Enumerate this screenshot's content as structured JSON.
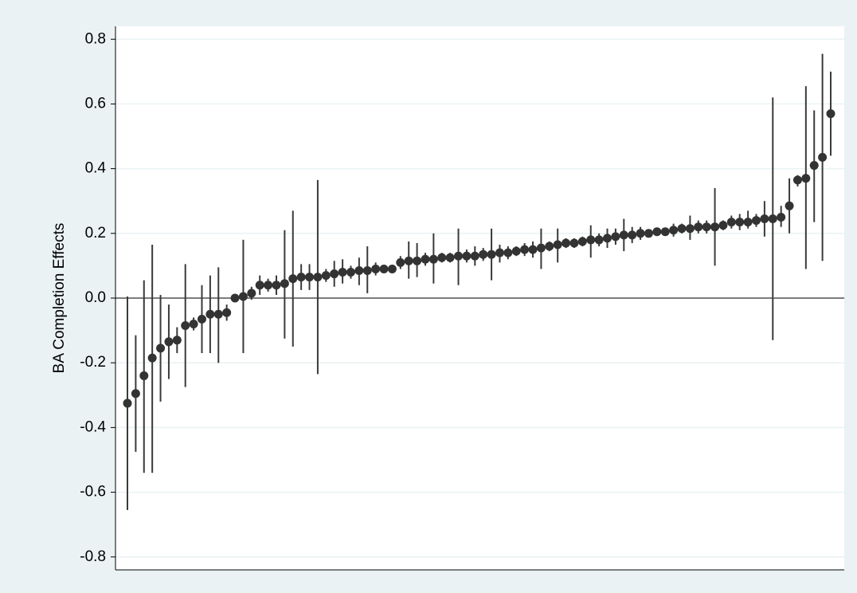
{
  "chart_data": {
    "type": "errorbar",
    "y_label": "BA Completion Effects",
    "ylim": [
      -0.84,
      0.84
    ],
    "yticks": [
      -0.8,
      -0.6,
      -0.4,
      -0.2,
      {
        "value": 0,
        "label": "0.0"
      },
      0.2,
      0.4,
      0.6,
      0.8
    ],
    "grid": true,
    "reference_line": 0,
    "color": "#333333",
    "values": [
      -0.325,
      -0.295,
      -0.24,
      -0.185,
      -0.155,
      -0.135,
      -0.13,
      -0.085,
      -0.08,
      -0.065,
      -0.05,
      -0.05,
      -0.045,
      0.0,
      0.005,
      0.015,
      0.04,
      0.04,
      0.04,
      0.045,
      0.06,
      0.065,
      0.065,
      0.065,
      0.07,
      0.075,
      0.08,
      0.08,
      0.085,
      0.085,
      0.09,
      0.09,
      0.09,
      0.11,
      0.115,
      0.115,
      0.12,
      0.12,
      0.125,
      0.125,
      0.13,
      0.13,
      0.13,
      0.135,
      0.135,
      0.14,
      0.14,
      0.145,
      0.15,
      0.15,
      0.155,
      0.16,
      0.165,
      0.17,
      0.17,
      0.175,
      0.18,
      0.18,
      0.185,
      0.19,
      0.195,
      0.195,
      0.2,
      0.2,
      0.205,
      0.205,
      0.21,
      0.215,
      0.215,
      0.22,
      0.22,
      0.22,
      0.225,
      0.235,
      0.235,
      0.235,
      0.24,
      0.245,
      0.245,
      0.25,
      0.285,
      0.365,
      0.37,
      0.41,
      0.435,
      0.57
    ],
    "lower": [
      -0.655,
      -0.475,
      -0.54,
      -0.54,
      -0.32,
      -0.25,
      -0.17,
      -0.275,
      -0.1,
      -0.17,
      -0.17,
      -0.2,
      -0.07,
      -0.01,
      -0.17,
      -0.005,
      0.01,
      0.02,
      0.01,
      -0.125,
      -0.15,
      0.025,
      0.025,
      -0.235,
      0.05,
      0.035,
      0.045,
      0.06,
      0.04,
      0.015,
      0.07,
      0.08,
      0.08,
      0.09,
      0.06,
      0.065,
      0.1,
      0.045,
      0.11,
      0.11,
      0.04,
      0.11,
      0.1,
      0.115,
      0.055,
      0.11,
      0.12,
      0.13,
      0.13,
      0.125,
      0.09,
      0.145,
      0.11,
      0.155,
      0.155,
      0.16,
      0.125,
      0.16,
      0.155,
      0.165,
      0.145,
      0.17,
      0.18,
      0.19,
      0.195,
      0.195,
      0.19,
      0.2,
      0.18,
      0.2,
      0.2,
      0.1,
      0.21,
      0.215,
      0.21,
      0.215,
      0.22,
      0.19,
      -0.13,
      0.22,
      0.2,
      0.345,
      0.09,
      0.235,
      0.115,
      0.44
    ],
    "upper": [
      0.005,
      -0.115,
      0.055,
      0.165,
      0.01,
      -0.02,
      -0.09,
      0.105,
      -0.06,
      0.04,
      0.07,
      0.095,
      -0.02,
      0.01,
      0.18,
      0.035,
      0.07,
      0.06,
      0.07,
      0.21,
      0.27,
      0.105,
      0.105,
      0.365,
      0.09,
      0.115,
      0.12,
      0.1,
      0.125,
      0.16,
      0.11,
      0.1,
      0.1,
      0.13,
      0.175,
      0.17,
      0.14,
      0.2,
      0.14,
      0.14,
      0.215,
      0.15,
      0.16,
      0.155,
      0.215,
      0.165,
      0.16,
      0.16,
      0.17,
      0.175,
      0.215,
      0.175,
      0.215,
      0.185,
      0.185,
      0.19,
      0.225,
      0.2,
      0.215,
      0.215,
      0.245,
      0.22,
      0.22,
      0.21,
      0.215,
      0.215,
      0.23,
      0.23,
      0.255,
      0.24,
      0.24,
      0.34,
      0.24,
      0.255,
      0.26,
      0.27,
      0.26,
      0.3,
      0.62,
      0.285,
      0.37,
      0.38,
      0.655,
      0.58,
      0.755,
      0.7
    ]
  }
}
